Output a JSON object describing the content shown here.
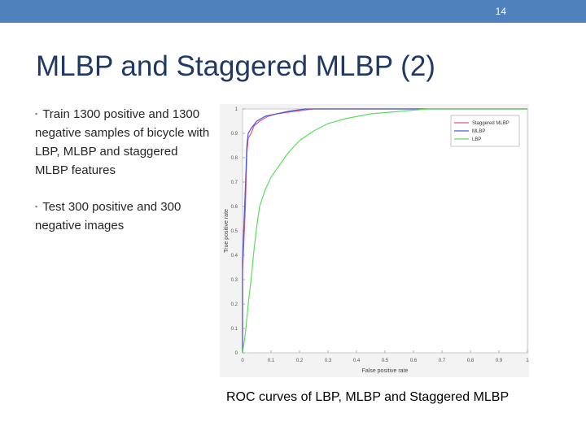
{
  "slide": {
    "number": "14",
    "title": "MLBP and Staggered MLBP (2)",
    "bullets": [
      "Train 1300 positive and  1300 negative samples of bicycle with LBP, MLBP and staggered  MLBP features",
      "Test 300 positive and 300 negative images"
    ],
    "caption": "ROC curves of LBP, MLBP and Staggered MLBP"
  },
  "colors": {
    "header_bar": "#4f81bd",
    "title": "#1f3864"
  },
  "chart_data": {
    "type": "line",
    "xlabel": "False positive rate",
    "ylabel": "True positive rate",
    "xlim": [
      0,
      1
    ],
    "ylim": [
      0,
      1
    ],
    "xticks": [
      "0",
      "0.1",
      "0.2",
      "0.3",
      "0.4",
      "0.5",
      "0.6",
      "0.7",
      "0.8",
      "0.9",
      "1"
    ],
    "yticks": [
      "0",
      "0.1",
      "0.2",
      "0.3",
      "0.4",
      "0.5",
      "0.6",
      "0.7",
      "0.8",
      "0.9",
      "1"
    ],
    "grid": false,
    "legend_position": "top-right",
    "series": [
      {
        "name": "Staggered MLBP",
        "color": "#e8507a",
        "points": [
          [
            0,
            0
          ],
          [
            0,
            0.33
          ],
          [
            0.01,
            0.6
          ],
          [
            0.015,
            0.82
          ],
          [
            0.02,
            0.88
          ],
          [
            0.03,
            0.9
          ],
          [
            0.04,
            0.93
          ],
          [
            0.06,
            0.95
          ],
          [
            0.09,
            0.97
          ],
          [
            0.12,
            0.98
          ],
          [
            0.18,
            0.99
          ],
          [
            0.25,
            1
          ],
          [
            1,
            1
          ]
        ]
      },
      {
        "name": "MLBP",
        "color": "#4a5bd8",
        "points": [
          [
            0,
            0
          ],
          [
            0,
            0.38
          ],
          [
            0.01,
            0.68
          ],
          [
            0.015,
            0.85
          ],
          [
            0.02,
            0.9
          ],
          [
            0.03,
            0.92
          ],
          [
            0.05,
            0.95
          ],
          [
            0.08,
            0.97
          ],
          [
            0.12,
            0.98
          ],
          [
            0.16,
            0.99
          ],
          [
            0.22,
            1
          ],
          [
            1,
            1
          ]
        ]
      },
      {
        "name": "LBP",
        "color": "#5ede5e",
        "points": [
          [
            0,
            0
          ],
          [
            0.01,
            0.08
          ],
          [
            0.02,
            0.2
          ],
          [
            0.03,
            0.3
          ],
          [
            0.04,
            0.42
          ],
          [
            0.05,
            0.52
          ],
          [
            0.06,
            0.6
          ],
          [
            0.08,
            0.67
          ],
          [
            0.1,
            0.72
          ],
          [
            0.13,
            0.77
          ],
          [
            0.16,
            0.82
          ],
          [
            0.2,
            0.87
          ],
          [
            0.25,
            0.91
          ],
          [
            0.3,
            0.94
          ],
          [
            0.36,
            0.96
          ],
          [
            0.45,
            0.98
          ],
          [
            0.55,
            0.99
          ],
          [
            0.65,
            1
          ],
          [
            1,
            1
          ]
        ]
      }
    ]
  }
}
